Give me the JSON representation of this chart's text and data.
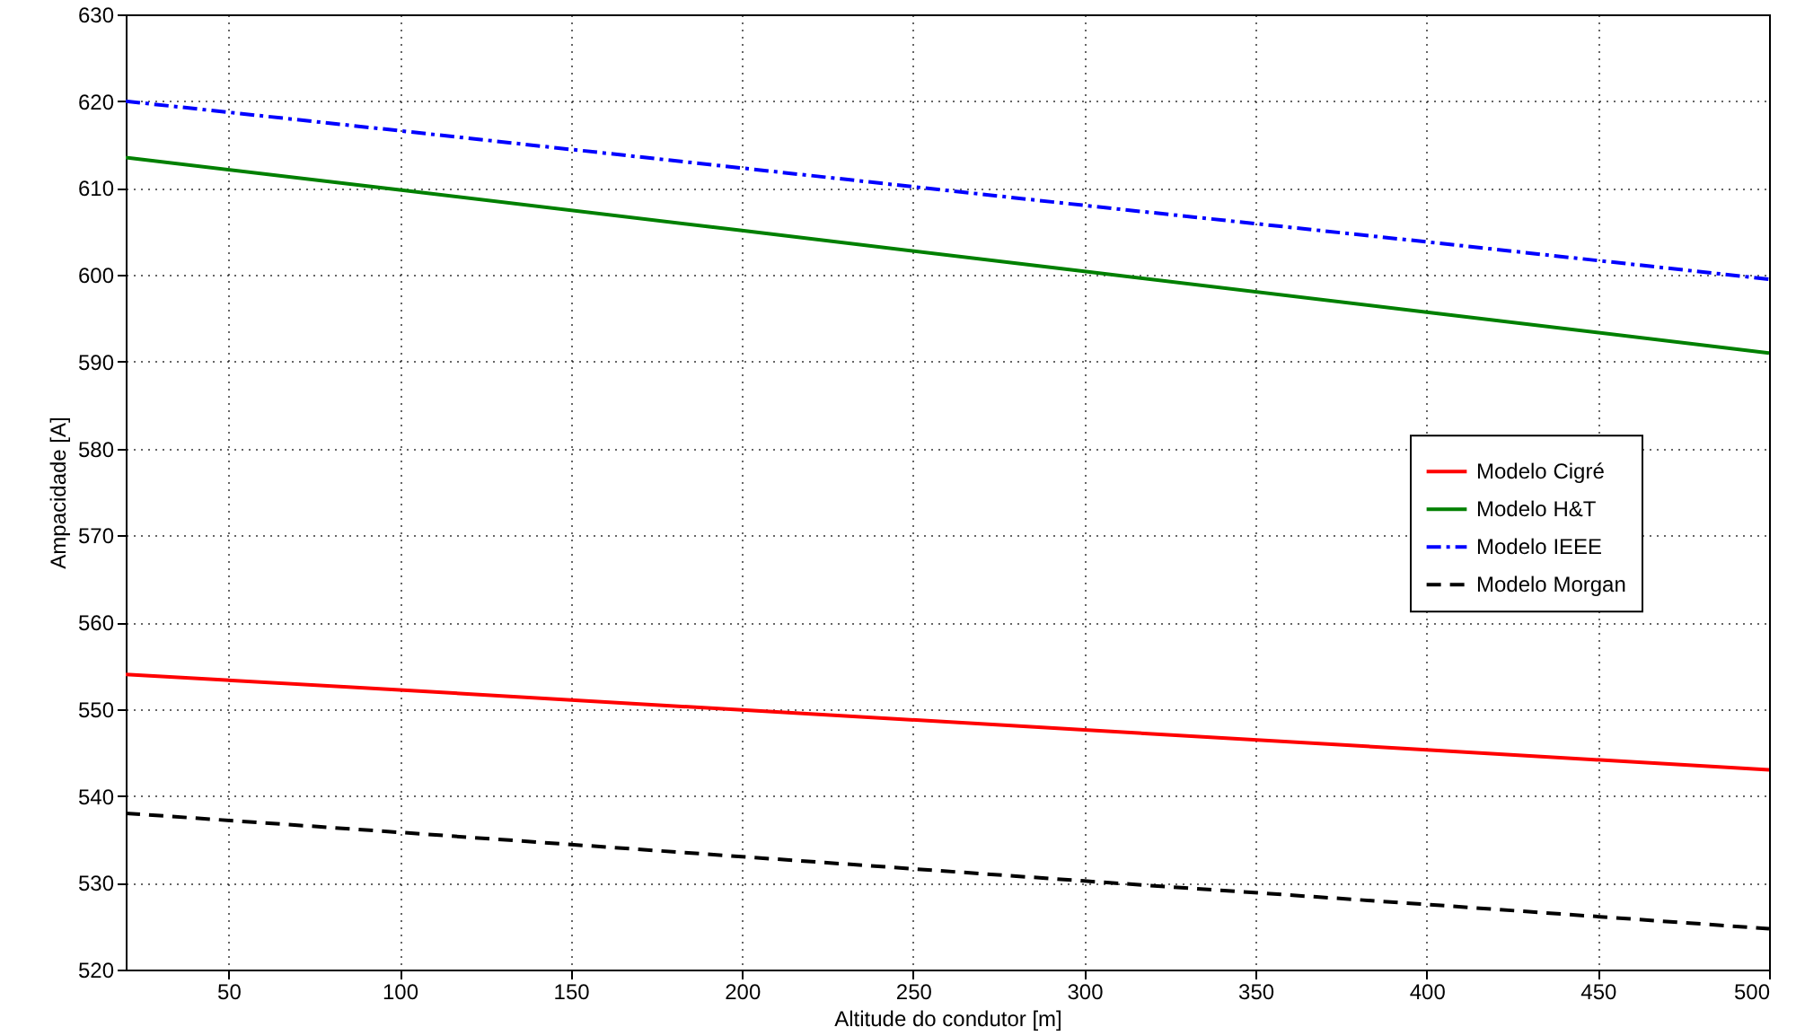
{
  "chart_data": {
    "type": "line",
    "xlabel": "Altitude do condutor [m]",
    "ylabel": "Ampacidade [A]",
    "x": [
      20,
      100,
      200,
      300,
      400,
      500
    ],
    "series": [
      {
        "name": "Modelo Cigré",
        "color": "#ff0000",
        "line_style": "solid",
        "values": [
          554,
          552.2,
          549.9,
          547.6,
          545.3,
          543
        ]
      },
      {
        "name": "Modelo H&T",
        "color": "#008000",
        "line_style": "solid",
        "values": [
          613.5,
          609.8,
          605.1,
          600.4,
          595.7,
          591
        ]
      },
      {
        "name": "Modelo IEEE",
        "color": "#0000ff",
        "line_style": "dashdot",
        "values": [
          620,
          616.6,
          612.3,
          608,
          603.8,
          599.5
        ]
      },
      {
        "name": "Modelo Morgan",
        "color": "#000000",
        "line_style": "dashed",
        "values": [
          538,
          535.8,
          533,
          530.2,
          527.5,
          524.7
        ]
      }
    ],
    "xlim": [
      20,
      500
    ],
    "xticks": [
      50,
      100,
      150,
      200,
      250,
      300,
      350,
      400,
      450,
      500
    ],
    "ylim": [
      520,
      630
    ],
    "yticks": [
      520,
      530,
      540,
      550,
      560,
      570,
      580,
      590,
      600,
      610,
      620,
      630
    ],
    "grid": true,
    "legend": "right",
    "marker": "none"
  }
}
